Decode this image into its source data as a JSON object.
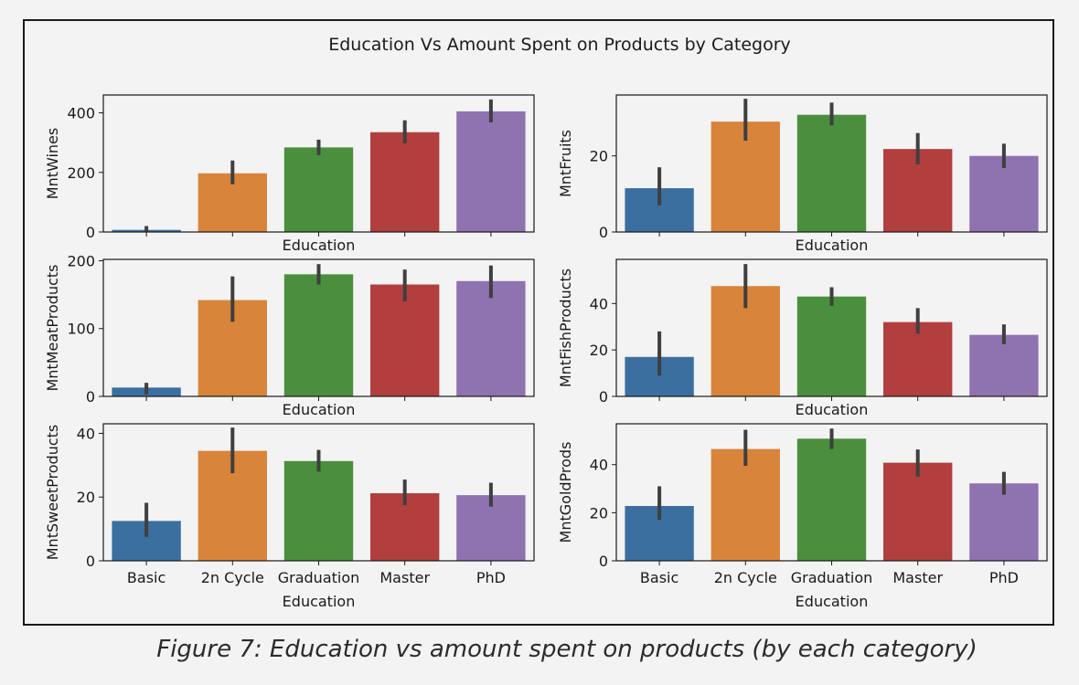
{
  "figure": {
    "title": "Education Vs Amount Spent on Products by Category",
    "caption": "Figure 7: Education vs amount spent on products (by each category)"
  },
  "colors": {
    "Basic": "#3a6f9f",
    "2n Cycle": "#d9843b",
    "Graduation": "#4a8f3d",
    "Master": "#b13f3d",
    "PhD": "#8f72b0",
    "errorbar": "#3f3f3f"
  },
  "chart_data": [
    {
      "type": "bar",
      "ylabel": "MntWines",
      "xlabel": "Education",
      "categories": [
        "Basic",
        "2n Cycle",
        "Graduation",
        "Master",
        "PhD"
      ],
      "values": [
        7,
        197,
        284,
        335,
        405
      ],
      "err_low": [
        2,
        160,
        258,
        298,
        368
      ],
      "err_high": [
        20,
        240,
        310,
        375,
        445
      ],
      "ylim": [
        0,
        460
      ],
      "yticks": [
        0,
        200,
        400
      ],
      "show_xticklabels": false
    },
    {
      "type": "bar",
      "ylabel": "MntFruits",
      "xlabel": "Education",
      "categories": [
        "Basic",
        "2n Cycle",
        "Graduation",
        "Master",
        "PhD"
      ],
      "values": [
        11.5,
        29,
        30.8,
        21.8,
        20
      ],
      "err_low": [
        7,
        24,
        28,
        17.8,
        16.8
      ],
      "err_high": [
        17,
        35,
        34,
        26,
        23.2
      ],
      "ylim": [
        0,
        36
      ],
      "yticks": [
        0,
        20
      ],
      "show_xticklabels": false
    },
    {
      "type": "bar",
      "ylabel": "MntMeatProducts",
      "xlabel": "Education",
      "categories": [
        "Basic",
        "2n Cycle",
        "Graduation",
        "Master",
        "PhD"
      ],
      "values": [
        13,
        142,
        180,
        165,
        170
      ],
      "err_low": [
        3,
        110,
        165,
        140,
        145
      ],
      "err_high": [
        20,
        177,
        195,
        187,
        193
      ],
      "ylim": [
        0,
        202
      ],
      "yticks": [
        0,
        100,
        200
      ],
      "show_xticklabels": false
    },
    {
      "type": "bar",
      "ylabel": "MntFishProducts",
      "xlabel": "Education",
      "categories": [
        "Basic",
        "2n Cycle",
        "Graduation",
        "Master",
        "PhD"
      ],
      "values": [
        17,
        47.5,
        43,
        32,
        26.5
      ],
      "err_low": [
        9,
        38,
        39,
        27,
        22.5
      ],
      "err_high": [
        28,
        57,
        47,
        38,
        31
      ],
      "ylim": [
        0,
        59
      ],
      "yticks": [
        0,
        20,
        40
      ],
      "show_xticklabels": false
    },
    {
      "type": "bar",
      "ylabel": "MntSweetProducts",
      "xlabel": "Education",
      "categories": [
        "Basic",
        "2n Cycle",
        "Graduation",
        "Master",
        "PhD"
      ],
      "values": [
        12.5,
        34.5,
        31.3,
        21.2,
        20.6
      ],
      "err_low": [
        7.5,
        27.5,
        28,
        17.5,
        17
      ],
      "err_high": [
        18.2,
        41.8,
        34.8,
        25.5,
        24.5
      ],
      "ylim": [
        0,
        43
      ],
      "yticks": [
        0,
        20,
        40
      ],
      "show_xticklabels": true
    },
    {
      "type": "bar",
      "ylabel": "MntGoldProds",
      "xlabel": "Education",
      "categories": [
        "Basic",
        "2n Cycle",
        "Graduation",
        "Master",
        "PhD"
      ],
      "values": [
        22.8,
        46.5,
        50.8,
        40.8,
        32.2
      ],
      "err_low": [
        17,
        39.5,
        46.5,
        35,
        27.5
      ],
      "err_high": [
        31,
        54.5,
        55,
        46.3,
        37
      ],
      "ylim": [
        0,
        57
      ],
      "yticks": [
        0,
        20,
        40
      ],
      "show_xticklabels": true
    }
  ]
}
